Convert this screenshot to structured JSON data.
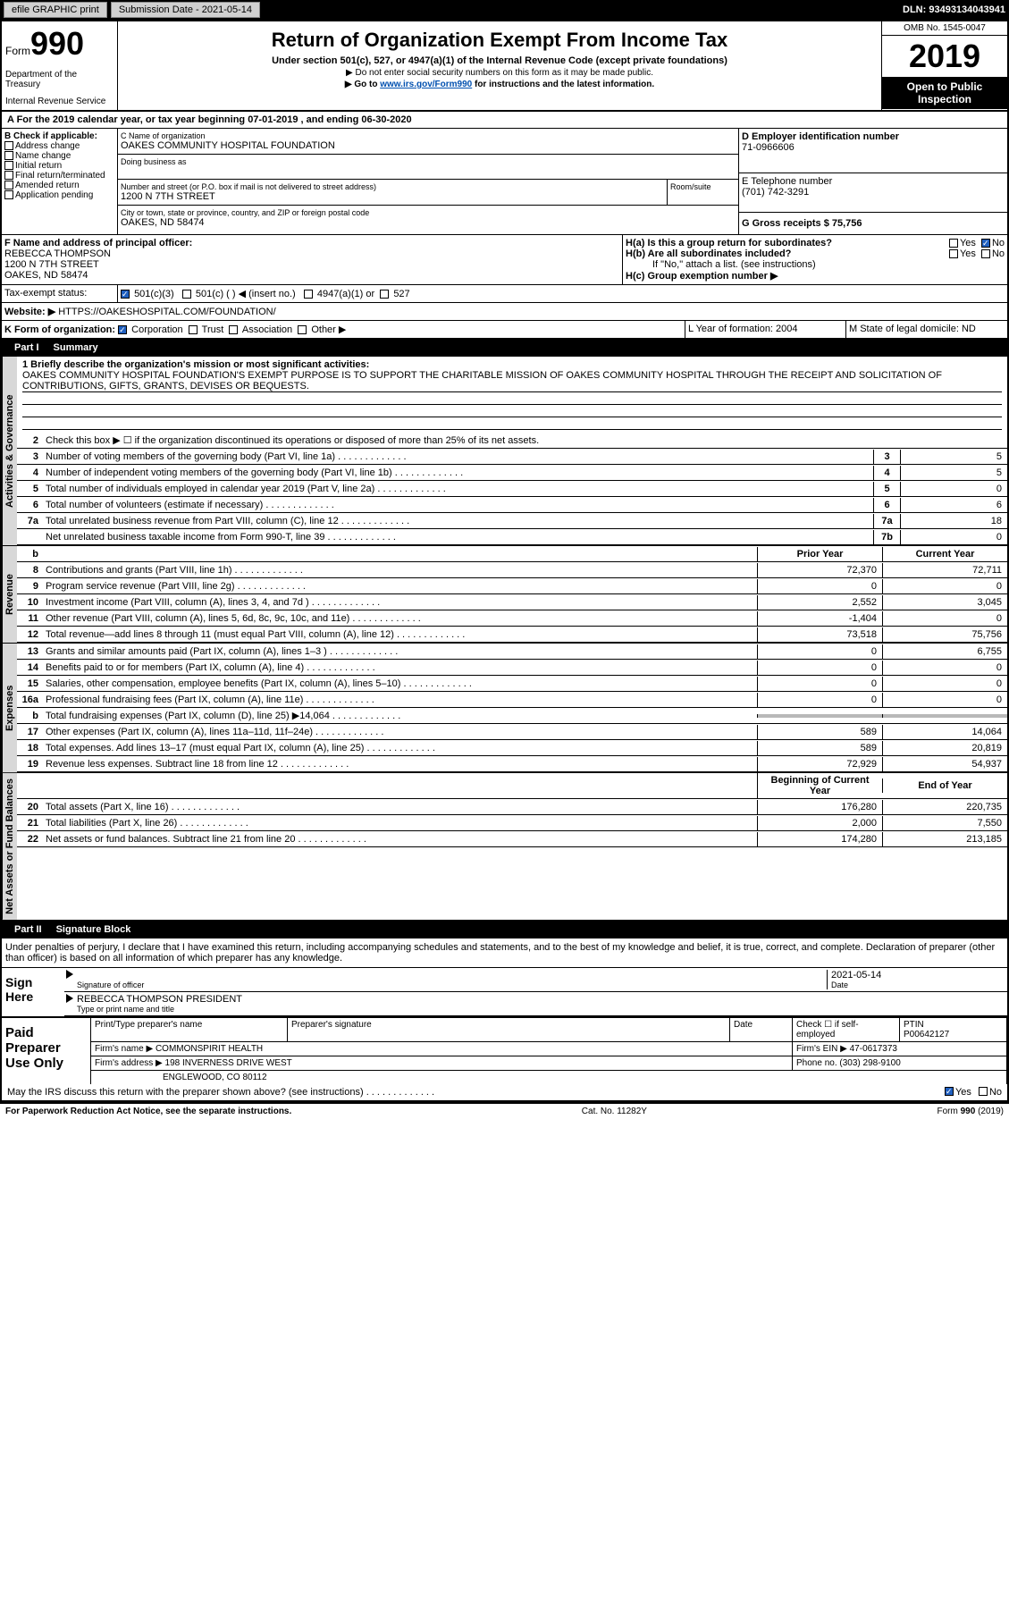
{
  "topbar": {
    "efile": "efile GRAPHIC print",
    "submission_label": "Submission Date - 2021-05-14",
    "dln": "DLN: 93493134043941"
  },
  "header": {
    "form_label": "Form",
    "form_no": "990",
    "dept": "Department of the Treasury",
    "irs": "Internal Revenue Service",
    "title": "Return of Organization Exempt From Income Tax",
    "sub1": "Under section 501(c), 527, or 4947(a)(1) of the Internal Revenue Code (except private foundations)",
    "sub2": "▶ Do not enter social security numbers on this form as it may be made public.",
    "sub3_pre": "▶ Go to ",
    "sub3_link": "www.irs.gov/Form990",
    "sub3_post": " for instructions and the latest information.",
    "omb": "OMB No. 1545-0047",
    "year": "2019",
    "open1": "Open to Public",
    "open2": "Inspection"
  },
  "period": {
    "label_a": "A For the 2019 calendar year, or tax year beginning 07-01-2019    , and ending 06-30-2020"
  },
  "section_b": {
    "label": "B Check if applicable:",
    "items": [
      "Address change",
      "Name change",
      "Initial return",
      "Final return/terminated",
      "Amended return",
      "Application pending"
    ]
  },
  "section_c": {
    "name_lbl": "C Name of organization",
    "name": "OAKES COMMUNITY HOSPITAL FOUNDATION",
    "dba_lbl": "Doing business as",
    "addr_lbl": "Number and street (or P.O. box if mail is not delivered to street address)",
    "room_lbl": "Room/suite",
    "addr": "1200 N 7TH STREET",
    "city_lbl": "City or town, state or province, country, and ZIP or foreign postal code",
    "city": "OAKES, ND  58474"
  },
  "section_d": {
    "ein_lbl": "D Employer identification number",
    "ein": "71-0966606",
    "tel_lbl": "E Telephone number",
    "tel": "(701) 742-3291",
    "gross_lbl": "G Gross receipts $ 75,756"
  },
  "section_f": {
    "lbl": "F  Name and address of principal officer:",
    "name": "REBECCA THOMPSON",
    "addr1": "1200 N 7TH STREET",
    "addr2": "OAKES, ND  58474"
  },
  "section_h": {
    "ha": "H(a)  Is this a group return for subordinates?",
    "hb": "H(b)  Are all subordinates included?",
    "hb_note": "If \"No,\" attach a list. (see instructions)",
    "hc": "H(c)  Group exemption number ▶",
    "yes": "Yes",
    "no": "No"
  },
  "tax_exempt": {
    "lbl": "Tax-exempt status:",
    "c3": "501(c)(3)",
    "c": "501(c) (  ) ◀ (insert no.)",
    "a1": "4947(a)(1) or",
    "s527": "527"
  },
  "website": {
    "lbl": "Website: ▶",
    "val": "HTTPS://OAKESHOSPITAL.COM/FOUNDATION/"
  },
  "section_k": {
    "lbl": "K Form of organization:",
    "corp": "Corporation",
    "trust": "Trust",
    "assoc": "Association",
    "other": "Other ▶"
  },
  "section_l": {
    "lbl": "L Year of formation: 2004"
  },
  "section_m": {
    "lbl": "M State of legal domicile: ND"
  },
  "part1": {
    "label": "Part I",
    "title": "Summary",
    "q1": "1  Briefly describe the organization's mission or most significant activities:",
    "mission": "OAKES COMMUNITY HOSPITAL FOUNDATION'S EXEMPT PURPOSE IS TO SUPPORT THE CHARITABLE MISSION OF OAKES COMMUNITY HOSPITAL THROUGH THE RECEIPT AND SOLICITATION OF CONTRIBUTIONS, GIFTS, GRANTS, DEVISES OR BEQUESTS.",
    "q2": "Check this box ▶ ☐  if the organization discontinued its operations or disposed of more than 25% of its net assets."
  },
  "activities_side": "Activities & Governance",
  "revenue_side": "Revenue",
  "expenses_side": "Expenses",
  "netassets_side": "Net Assets or Fund Balances",
  "lines_act": [
    {
      "no": "3",
      "txt": "Number of voting members of the governing body (Part VI, line 1a)",
      "box": "3",
      "val": "5"
    },
    {
      "no": "4",
      "txt": "Number of independent voting members of the governing body (Part VI, line 1b)",
      "box": "4",
      "val": "5"
    },
    {
      "no": "5",
      "txt": "Total number of individuals employed in calendar year 2019 (Part V, line 2a)",
      "box": "5",
      "val": "0"
    },
    {
      "no": "6",
      "txt": "Total number of volunteers (estimate if necessary)",
      "box": "6",
      "val": "6"
    },
    {
      "no": "7a",
      "txt": "Total unrelated business revenue from Part VIII, column (C), line 12",
      "box": "7a",
      "val": "18"
    },
    {
      "no": "",
      "txt": "Net unrelated business taxable income from Form 990-T, line 39",
      "box": "7b",
      "val": "0"
    }
  ],
  "col_headers": {
    "prior": "Prior Year",
    "current": "Current Year"
  },
  "lines_rev": [
    {
      "no": "8",
      "txt": "Contributions and grants (Part VIII, line 1h)",
      "p": "72,370",
      "c": "72,711"
    },
    {
      "no": "9",
      "txt": "Program service revenue (Part VIII, line 2g)",
      "p": "0",
      "c": "0"
    },
    {
      "no": "10",
      "txt": "Investment income (Part VIII, column (A), lines 3, 4, and 7d )",
      "p": "2,552",
      "c": "3,045"
    },
    {
      "no": "11",
      "txt": "Other revenue (Part VIII, column (A), lines 5, 6d, 8c, 9c, 10c, and 11e)",
      "p": "-1,404",
      "c": "0"
    },
    {
      "no": "12",
      "txt": "Total revenue—add lines 8 through 11 (must equal Part VIII, column (A), line 12)",
      "p": "73,518",
      "c": "75,756"
    }
  ],
  "lines_exp": [
    {
      "no": "13",
      "txt": "Grants and similar amounts paid (Part IX, column (A), lines 1–3 )",
      "p": "0",
      "c": "6,755"
    },
    {
      "no": "14",
      "txt": "Benefits paid to or for members (Part IX, column (A), line 4)",
      "p": "0",
      "c": "0"
    },
    {
      "no": "15",
      "txt": "Salaries, other compensation, employee benefits (Part IX, column (A), lines 5–10)",
      "p": "0",
      "c": "0"
    },
    {
      "no": "16a",
      "txt": "Professional fundraising fees (Part IX, column (A), line 11e)",
      "p": "0",
      "c": "0"
    },
    {
      "no": "b",
      "txt": "Total fundraising expenses (Part IX, column (D), line 25) ▶14,064",
      "p": "",
      "c": "",
      "grey": true
    },
    {
      "no": "17",
      "txt": "Other expenses (Part IX, column (A), lines 11a–11d, 11f–24e)",
      "p": "589",
      "c": "14,064"
    },
    {
      "no": "18",
      "txt": "Total expenses. Add lines 13–17 (must equal Part IX, column (A), line 25)",
      "p": "589",
      "c": "20,819"
    },
    {
      "no": "19",
      "txt": "Revenue less expenses. Subtract line 18 from line 12",
      "p": "72,929",
      "c": "54,937"
    }
  ],
  "col_headers2": {
    "beg": "Beginning of Current Year",
    "end": "End of Year"
  },
  "lines_net": [
    {
      "no": "20",
      "txt": "Total assets (Part X, line 16)",
      "p": "176,280",
      "c": "220,735"
    },
    {
      "no": "21",
      "txt": "Total liabilities (Part X, line 26)",
      "p": "2,000",
      "c": "7,550"
    },
    {
      "no": "22",
      "txt": "Net assets or fund balances. Subtract line 21 from line 20",
      "p": "174,280",
      "c": "213,185"
    }
  ],
  "part2": {
    "label": "Part II",
    "title": "Signature Block",
    "decl": "Under penalties of perjury, I declare that I have examined this return, including accompanying schedules and statements, and to the best of my knowledge and belief, it is true, correct, and complete. Declaration of preparer (other than officer) is based on all information of which preparer has any knowledge."
  },
  "sign": {
    "here": "Sign Here",
    "sig_lbl": "Signature of officer",
    "date_lbl": "Date",
    "date": "2021-05-14",
    "name": "REBECCA THOMPSON PRESIDENT",
    "name_lbl": "Type or print name and title"
  },
  "paid": {
    "here": "Paid Preparer Use Only",
    "prep_name_lbl": "Print/Type preparer's name",
    "prep_sig_lbl": "Preparer's signature",
    "date_lbl": "Date",
    "check_lbl": "Check ☐ if self-employed",
    "ptin_lbl": "PTIN",
    "ptin": "P00642127",
    "firm_name_lbl": "Firm's name    ▶",
    "firm_name": "COMMONSPIRIT HEALTH",
    "firm_ein_lbl": "Firm's EIN ▶",
    "firm_ein": "47-0617373",
    "firm_addr_lbl": "Firm's address ▶",
    "firm_addr": "198 INVERNESS DRIVE WEST",
    "firm_city": "ENGLEWOOD, CO  80112",
    "phone_lbl": "Phone no.",
    "phone": "(303) 298-9100"
  },
  "discuss": {
    "txt": "May the IRS discuss this return with the preparer shown above? (see instructions)",
    "yes": "Yes",
    "no": "No"
  },
  "footer": {
    "left": "For Paperwork Reduction Act Notice, see the separate instructions.",
    "mid": "Cat. No. 11282Y",
    "right": "Form 990 (2019)"
  }
}
